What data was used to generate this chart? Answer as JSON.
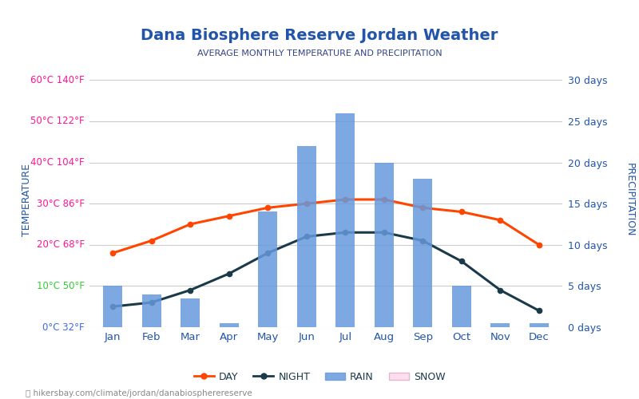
{
  "title": "Dana Biosphere Reserve Jordan Weather",
  "subtitle": "AVERAGE MONTHLY TEMPERATURE AND PRECIPITATION",
  "months": [
    "Jan",
    "Feb",
    "Mar",
    "Apr",
    "May",
    "Jun",
    "Jul",
    "Aug",
    "Sep",
    "Oct",
    "Nov",
    "Dec"
  ],
  "day_temp": [
    18,
    21,
    25,
    27,
    29,
    30,
    31,
    31,
    29,
    28,
    26,
    20
  ],
  "night_temp": [
    5,
    6,
    9,
    13,
    18,
    22,
    23,
    23,
    21,
    16,
    9,
    4
  ],
  "rain_days": [
    5,
    4,
    3.5,
    0.5,
    14,
    22,
    26,
    20,
    18,
    5,
    0.5,
    0.5
  ],
  "snow_days": [
    0,
    0,
    0,
    0,
    0,
    0,
    0,
    0,
    0,
    0,
    0,
    0
  ],
  "bar_color": "#6699DD",
  "day_color": "#FF4500",
  "night_color": "#1A3A4A",
  "left_ylabel": "TEMPERATURE",
  "right_ylabel": "PRECIPITATION",
  "temp_ticks": [
    0,
    10,
    20,
    30,
    40,
    50,
    60
  ],
  "temp_labels": [
    "0°C 32°F",
    "10°C 50°F",
    "20°C 68°F",
    "30°C 86°F",
    "40°C 104°F",
    "50°C 122°F",
    "60°C 140°F"
  ],
  "temp_label_colors": [
    "#4169E1",
    "#32CD32",
    "#FF1493",
    "#FF1493",
    "#FF1493",
    "#FF1493",
    "#FF1493"
  ],
  "precip_ticks": [
    0,
    5,
    10,
    15,
    20,
    25,
    30
  ],
  "precip_labels": [
    "0 days",
    "5 days",
    "10 days",
    "15 days",
    "20 days",
    "25 days",
    "30 days"
  ],
  "url_text": "hikersbay.com/climate/jordan/danabiospherereserve",
  "legend_labels": [
    "DAY",
    "NIGHT",
    "RAIN",
    "SNOW"
  ],
  "ylim_temp": [
    0,
    62
  ],
  "ylim_precip": [
    0,
    31
  ],
  "background_color": "#ffffff",
  "title_color": "#2255AA",
  "subtitle_color": "#334488",
  "axis_label_color": "#2255AA",
  "grid_color": "#CCCCCC",
  "month_label_color": "#2255AA",
  "url_color": "#888888",
  "legend_text_color": "#1A3A4A"
}
